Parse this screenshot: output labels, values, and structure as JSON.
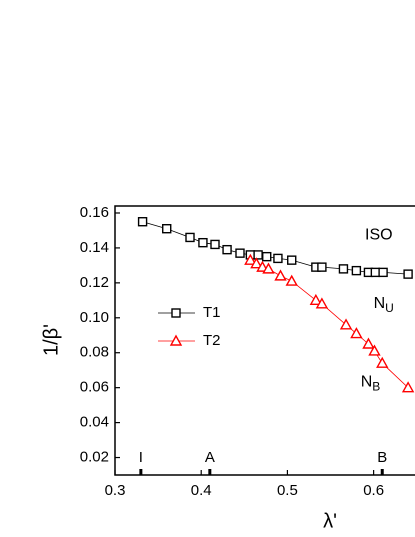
{
  "chart_data": {
    "type": "line",
    "xlabel": "λ'",
    "ylabel": "1/β'",
    "xlim": [
      0.3,
      0.648
    ],
    "ylim": [
      0.01,
      0.164
    ],
    "xticks": [
      0.3,
      0.4,
      0.5,
      0.6
    ],
    "yticks": [
      0.02,
      0.04,
      0.06,
      0.08,
      {
        "value": 0.1,
        "label": "0.10"
      },
      0.12,
      0.14,
      0.16
    ],
    "series": [
      {
        "name": "T1",
        "color": "#000000",
        "marker": "square",
        "x": [
          0.332,
          0.36,
          0.387,
          0.402,
          0.416,
          0.43,
          0.445,
          0.457,
          0.466,
          0.476,
          0.489,
          0.505,
          0.533,
          0.54,
          0.565,
          0.58,
          0.594,
          0.602,
          0.611,
          0.64
        ],
        "values": [
          0.155,
          0.151,
          0.146,
          0.143,
          0.142,
          0.139,
          0.137,
          0.136,
          0.136,
          0.135,
          0.134,
          0.133,
          0.129,
          0.129,
          0.128,
          0.127,
          0.126,
          0.126,
          0.126,
          0.125
        ]
      },
      {
        "name": "T2",
        "color": "#ff0000",
        "marker": "triangle",
        "x": [
          0.457,
          0.464,
          0.471,
          0.478,
          0.492,
          0.505,
          0.533,
          0.54,
          0.568,
          0.58,
          0.594,
          0.601,
          0.61,
          0.64
        ],
        "values": [
          0.133,
          0.131,
          0.129,
          0.128,
          0.124,
          0.121,
          0.11,
          0.108,
          0.096,
          0.091,
          0.085,
          0.081,
          0.074,
          0.06
        ]
      }
    ],
    "annotations": [
      {
        "text": "ISO",
        "x": 0.59,
        "y": 0.147
      },
      {
        "text": "N",
        "sub": "U",
        "x": 0.6,
        "y": 0.108
      },
      {
        "text": "N",
        "sub": "B",
        "x": 0.585,
        "y": 0.063
      }
    ],
    "axis_markers": [
      {
        "label": "I",
        "x": 0.33
      },
      {
        "label": "A",
        "x": 0.41
      },
      {
        "label": "B",
        "x": 0.61
      }
    ]
  }
}
